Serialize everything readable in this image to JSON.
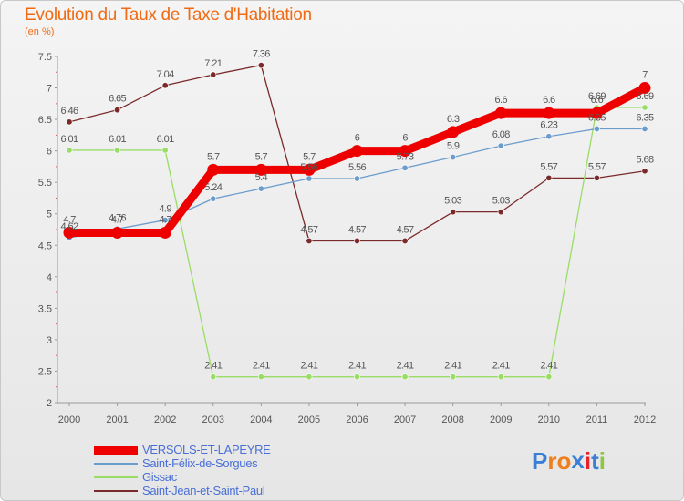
{
  "title": "Evolution du Taux de Taxe d'Habitation",
  "unit": "(en %)",
  "logo": {
    "text": "Proxiti",
    "colors": [
      "#3a7fd5",
      "#f07e1b",
      "#f07e1b",
      "#3a7fd5",
      "#e8202a",
      "#3a7fd5",
      "#8dc63f"
    ]
  },
  "chart_data": {
    "type": "line",
    "title": "Evolution du Taux de Taxe d'Habitation",
    "ylabel": "(en %)",
    "xlabel": "",
    "categories": [
      "2000",
      "2001",
      "2002",
      "2003",
      "2004",
      "2005",
      "2006",
      "2007",
      "2008",
      "2009",
      "2010",
      "2011",
      "2012"
    ],
    "ylim": [
      2,
      7.5
    ],
    "yticks": [
      2,
      2.5,
      3,
      3.5,
      4,
      4.5,
      5,
      5.5,
      6,
      6.5,
      7,
      7.5
    ],
    "ytick_labels": [
      "2",
      "2.5",
      "3",
      "3.5",
      "4",
      "4.5",
      "5",
      "5.5",
      "6",
      "6.5",
      "7",
      "7.5"
    ],
    "grid": false,
    "legend_position": "bottom-left",
    "series": [
      {
        "name": "VERSOLS-ET-LAPEYRE",
        "color": "#ee0000",
        "values": [
          4.7,
          4.7,
          4.7,
          5.7,
          5.7,
          5.7,
          6,
          6,
          6.3,
          6.6,
          6.6,
          6.6,
          7
        ],
        "labels": [
          "4.7",
          "4.7",
          "4.7",
          "5.7",
          "5.7",
          "5.7",
          "6",
          "6",
          "6.3",
          "6.6",
          "6.6",
          "6.6",
          "7"
        ]
      },
      {
        "name": "Saint-Félix-de-Sorgues",
        "color": "#6b9ccc",
        "values": [
          4.62,
          4.76,
          4.9,
          5.24,
          5.4,
          5.56,
          5.56,
          5.73,
          5.9,
          6.08,
          6.23,
          6.35,
          6.35
        ],
        "labels": [
          "4.62",
          "4.76",
          "4.9",
          "5.24",
          "5.4",
          "5.56",
          "5.56",
          "5.73",
          "5.9",
          "6.08",
          "6.23",
          "6.35",
          "6.35"
        ]
      },
      {
        "name": "Gissac",
        "color": "#99dd66",
        "values": [
          6.01,
          6.01,
          6.01,
          2.41,
          2.41,
          2.41,
          2.41,
          2.41,
          2.41,
          2.41,
          2.41,
          6.69,
          6.69
        ],
        "labels": [
          "6.01",
          "6.01",
          "6.01",
          "2.41",
          "2.41",
          "2.41",
          "2.41",
          "2.41",
          "2.41",
          "2.41",
          "2.41",
          "6.69",
          "6.69"
        ]
      },
      {
        "name": "Saint-Jean-et-Saint-Paul",
        "color": "#7a2a2a",
        "values": [
          6.46,
          6.65,
          7.04,
          7.21,
          7.36,
          4.57,
          4.57,
          4.57,
          5.03,
          5.03,
          5.57,
          5.57,
          5.68
        ],
        "labels": [
          "6.46",
          "6.65",
          "7.04",
          "7.21",
          "7.36",
          "4.57",
          "4.57",
          "4.57",
          "5.03",
          "5.03",
          "5.57",
          "5.57",
          "5.68"
        ]
      }
    ]
  }
}
